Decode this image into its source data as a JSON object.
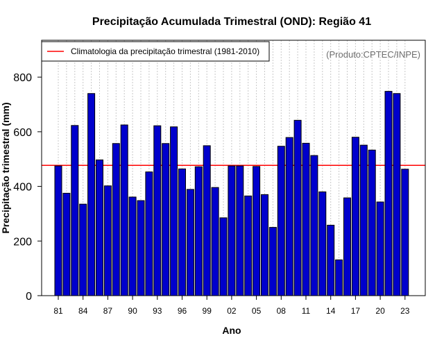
{
  "chart_data": {
    "type": "bar",
    "title": "Precipitação Acumulada Trimestral (OND): Região 41",
    "xlabel": "Ano",
    "ylabel": "Precipitação trimestral (mm)",
    "source": "(Produto:CPTEC/INPE)",
    "ylim": [
      0,
      935
    ],
    "yticks": [
      0,
      200,
      400,
      600,
      800
    ],
    "grid": "vertical dotted lines at each year",
    "legend_position": "top-left",
    "categories": [
      "81",
      "82",
      "83",
      "84",
      "85",
      "86",
      "87",
      "88",
      "89",
      "90",
      "91",
      "92",
      "93",
      "94",
      "95",
      "96",
      "97",
      "98",
      "99",
      "00",
      "01",
      "02",
      "03",
      "04",
      "05",
      "06",
      "07",
      "08",
      "09",
      "10",
      "11",
      "12",
      "13",
      "14",
      "15",
      "16",
      "17",
      "18",
      "19",
      "20",
      "21",
      "22",
      "23"
    ],
    "xticks": [
      "81",
      "84",
      "87",
      "90",
      "93",
      "96",
      "99",
      "02",
      "05",
      "08",
      "11",
      "14",
      "17",
      "20",
      "23"
    ],
    "values": [
      475,
      375,
      623,
      335,
      740,
      497,
      402,
      557,
      625,
      361,
      348,
      453,
      622,
      557,
      618,
      464,
      389,
      472,
      549,
      396,
      285,
      475,
      475,
      365,
      473,
      370,
      250,
      547,
      579,
      642,
      558,
      513,
      380,
      258,
      131,
      358,
      580,
      551,
      533,
      343,
      748,
      740,
      463
    ],
    "bar_color": "#0000CC",
    "reference_line": {
      "label": "Climatologia da precipitação trimestral (1981-2010)",
      "value": 477,
      "color": "#FF0000"
    }
  }
}
